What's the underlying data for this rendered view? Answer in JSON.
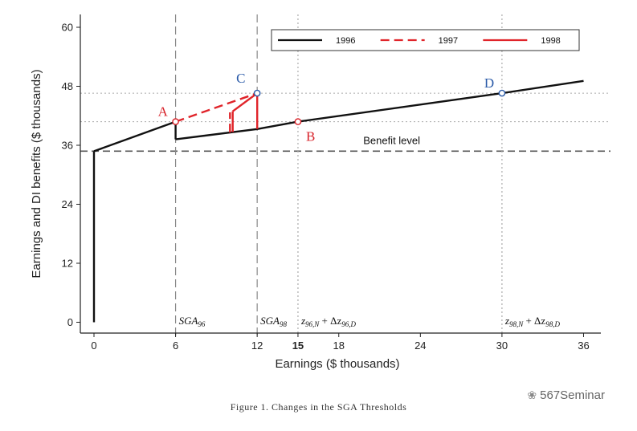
{
  "chart_data": {
    "type": "line",
    "xlabel": "Earnings ($ thousands)",
    "ylabel": "Earnings and DI benefits ($ thousands)",
    "xlim": [
      -1.5,
      37
    ],
    "ylim": [
      -2.2,
      62
    ],
    "x_ticks": [
      0,
      6,
      12,
      15,
      18,
      24,
      30,
      36
    ],
    "x_tick_labels": [
      "0",
      "6",
      "12",
      "15",
      "18",
      "24",
      "30",
      "36"
    ],
    "bold_x_tick": "15",
    "y_ticks": [
      0,
      12,
      24,
      36,
      48,
      60
    ],
    "y_tick_labels": [
      "0",
      "12",
      "24",
      "36",
      "48",
      "60"
    ],
    "legend": {
      "placement": "top-right",
      "entries": [
        "1996",
        "1997",
        "1998"
      ]
    },
    "series": [
      {
        "name": "1996",
        "color": "#111111",
        "style": "solid",
        "segments": [
          {
            "x": [
              0,
              0
            ],
            "y": [
              0,
              34.8
            ]
          },
          {
            "x": [
              0,
              6
            ],
            "y": [
              34.8,
              40.8
            ]
          },
          {
            "x": [
              6,
              6
            ],
            "y": [
              40.8,
              37.2
            ]
          },
          {
            "x": [
              6,
              12,
              15,
              30,
              36
            ],
            "y": [
              37.2,
              39.3,
              40.8,
              46.6,
              49.1
            ]
          }
        ]
      },
      {
        "name": "1997",
        "color": "#e0242a",
        "style": "dashed",
        "segments": [
          {
            "x": [
              6,
              12
            ],
            "y": [
              40.8,
              46.6
            ]
          },
          {
            "x": [
              10,
              10
            ],
            "y": [
              38.6,
              42.7
            ]
          }
        ]
      },
      {
        "name": "1998",
        "color": "#e0242a",
        "style": "solid",
        "segments": [
          {
            "x": [
              10.2,
              10.2
            ],
            "y": [
              38.7,
              42.9
            ]
          },
          {
            "x": [
              10.2,
              12
            ],
            "y": [
              42.9,
              46.6
            ]
          },
          {
            "x": [
              12,
              12
            ],
            "y": [
              39.3,
              46.6
            ]
          }
        ]
      }
    ],
    "benefit_level": 34.8,
    "benefit_label": "Benefit level",
    "vertical_refs": [
      {
        "x": 6,
        "style": "long-dash",
        "label": "SGA",
        "sub": "96"
      },
      {
        "x": 12,
        "style": "long-dash",
        "label": "SGA",
        "sub": "98"
      },
      {
        "x": 15,
        "style": "dotted",
        "label": "z",
        "sub": "96,N",
        "delta": "Δz",
        "delta_sub": "96,D"
      },
      {
        "x": 30,
        "style": "dotted",
        "label": "z",
        "sub": "98,N",
        "delta": "Δz",
        "delta_sub": "98,D"
      }
    ],
    "horizontal_refs": [
      40.8,
      46.6
    ],
    "points": [
      {
        "label": "A",
        "x": 6,
        "y": 40.8,
        "color": "#d8232a"
      },
      {
        "label": "B",
        "x": 15,
        "y": 40.8,
        "color": "#d8232a"
      },
      {
        "label": "C",
        "x": 12,
        "y": 46.6,
        "color": "#2a5aa8"
      },
      {
        "label": "D",
        "x": 30,
        "y": 46.6,
        "color": "#2a5aa8"
      }
    ]
  },
  "caption": "Figure 1. Changes in the SGA Thresholds",
  "watermark": {
    "icon": "chat-bubble-icon",
    "text": "567Seminar"
  }
}
